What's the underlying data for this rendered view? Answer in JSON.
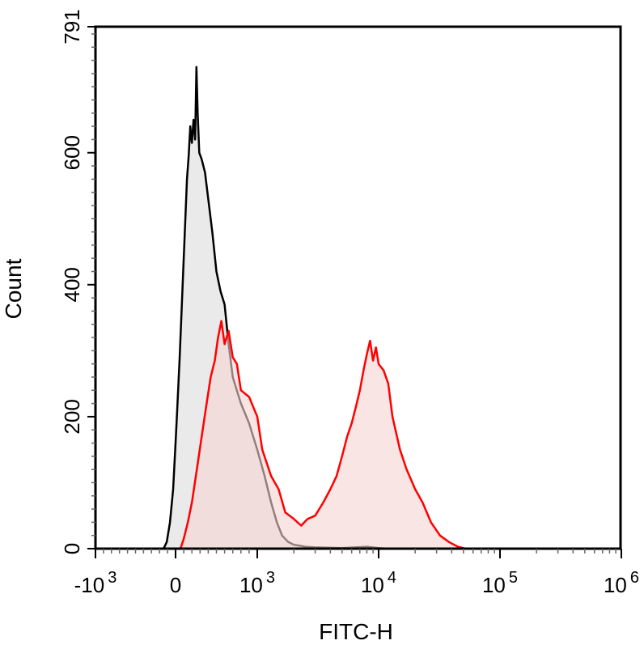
{
  "chart_data": {
    "type": "area",
    "title": "",
    "xlabel": "FITC-H",
    "ylabel": "Count",
    "x_scale": "biexponential",
    "ylim": [
      0,
      791
    ],
    "x_ticks": [
      {
        "value": -1000,
        "base": "-10",
        "exp": "3"
      },
      {
        "value": 0,
        "base": "0",
        "exp": ""
      },
      {
        "value": 1000,
        "base": "10",
        "exp": "3"
      },
      {
        "value": 10000,
        "base": "10",
        "exp": "4"
      },
      {
        "value": 100000,
        "base": "10",
        "exp": "5"
      },
      {
        "value": 1000000,
        "base": "10",
        "exp": "6"
      }
    ],
    "y_ticks": [
      {
        "value": 0,
        "label": "0"
      },
      {
        "value": 200,
        "label": "200"
      },
      {
        "value": 400,
        "label": "400"
      },
      {
        "value": 600,
        "label": "600"
      },
      {
        "value": 791,
        "label": "791"
      }
    ],
    "grid": false,
    "series": [
      {
        "color": "#000000",
        "fill": "#d9d9d9",
        "points": [
          [
            -150,
            0
          ],
          [
            -110,
            10
          ],
          [
            -70,
            40
          ],
          [
            -30,
            90
          ],
          [
            0,
            160
          ],
          [
            20,
            210
          ],
          [
            50,
            290
          ],
          [
            80,
            380
          ],
          [
            110,
            470
          ],
          [
            140,
            560
          ],
          [
            160,
            595
          ],
          [
            180,
            640
          ],
          [
            200,
            615
          ],
          [
            220,
            650
          ],
          [
            240,
            620
          ],
          [
            255,
            730
          ],
          [
            270,
            660
          ],
          [
            290,
            600
          ],
          [
            320,
            590
          ],
          [
            360,
            570
          ],
          [
            400,
            530
          ],
          [
            450,
            480
          ],
          [
            500,
            420
          ],
          [
            550,
            390
          ],
          [
            600,
            370
          ],
          [
            650,
            310
          ],
          [
            700,
            260
          ],
          [
            800,
            220
          ],
          [
            900,
            190
          ],
          [
            1000,
            150
          ],
          [
            1150,
            110
          ],
          [
            1300,
            70
          ],
          [
            1450,
            40
          ],
          [
            1600,
            20
          ],
          [
            1800,
            10
          ],
          [
            2000,
            6
          ],
          [
            2500,
            3
          ],
          [
            3000,
            2
          ],
          [
            5000,
            1
          ],
          [
            8000,
            3
          ],
          [
            10000,
            1
          ],
          [
            12000,
            0
          ]
        ]
      },
      {
        "color": "#ff0000",
        "fill": "#f7d4d4",
        "points": [
          [
            60,
            0
          ],
          [
            100,
            15
          ],
          [
            150,
            40
          ],
          [
            200,
            70
          ],
          [
            260,
            120
          ],
          [
            320,
            170
          ],
          [
            380,
            220
          ],
          [
            430,
            260
          ],
          [
            480,
            285
          ],
          [
            520,
            320
          ],
          [
            560,
            345
          ],
          [
            600,
            310
          ],
          [
            650,
            330
          ],
          [
            700,
            290
          ],
          [
            750,
            280
          ],
          [
            800,
            240
          ],
          [
            900,
            230
          ],
          [
            1000,
            200
          ],
          [
            1100,
            150
          ],
          [
            1300,
            110
          ],
          [
            1500,
            90
          ],
          [
            1700,
            55
          ],
          [
            2000,
            45
          ],
          [
            2300,
            35
          ],
          [
            2600,
            45
          ],
          [
            3000,
            50
          ],
          [
            3500,
            70
          ],
          [
            4000,
            90
          ],
          [
            4500,
            110
          ],
          [
            5000,
            140
          ],
          [
            5500,
            170
          ],
          [
            6000,
            190
          ],
          [
            6500,
            215
          ],
          [
            7000,
            240
          ],
          [
            7500,
            270
          ],
          [
            8000,
            295
          ],
          [
            8500,
            315
          ],
          [
            9000,
            285
          ],
          [
            9500,
            305
          ],
          [
            10000,
            280
          ],
          [
            11000,
            270
          ],
          [
            12000,
            250
          ],
          [
            13000,
            200
          ],
          [
            15000,
            150
          ],
          [
            17000,
            120
          ],
          [
            20000,
            90
          ],
          [
            23000,
            70
          ],
          [
            27000,
            40
          ],
          [
            32000,
            20
          ],
          [
            38000,
            10
          ],
          [
            45000,
            3
          ],
          [
            52000,
            0
          ]
        ]
      }
    ]
  }
}
